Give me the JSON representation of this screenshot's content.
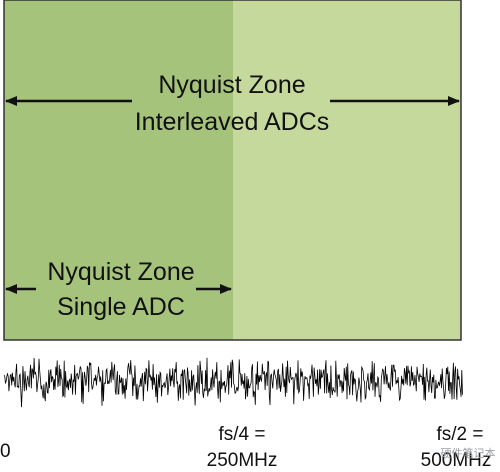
{
  "diagram": {
    "interleaved_zone": {
      "line1": "Nyquist Zone",
      "line2": "Interleaved ADCs"
    },
    "single_zone": {
      "line1": "Nyquist Zone",
      "line2": "Single ADC"
    },
    "axis": {
      "origin": "0",
      "quarter_line1": "fs/4 =",
      "quarter_line2": "250MHz",
      "half_line1": "fs/2 =",
      "half_line2": "500MHz"
    },
    "watermark": "硬件笔记本",
    "colors": {
      "single_adc_band": "#a6c37b",
      "interleaved_band": "#c6d99c",
      "frame": "#333333",
      "noise": "#000000"
    }
  }
}
